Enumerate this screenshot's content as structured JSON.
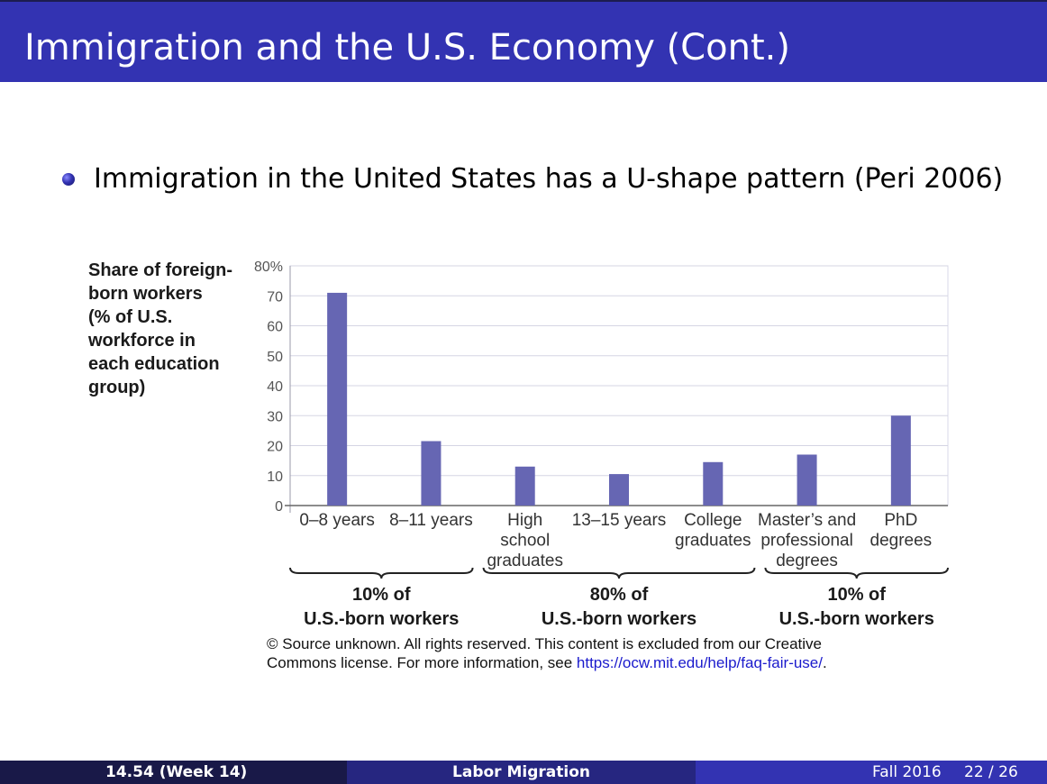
{
  "slide": {
    "title": "Immigration and the U.S. Economy (Cont.)",
    "bullet": "Immigration in the United States has a U-shape pattern (Peri 2006)"
  },
  "chart_data": {
    "type": "bar",
    "title": "",
    "ylabel": [
      "Share of foreign-",
      "born workers",
      "(% of U.S.",
      "workforce in",
      "each education",
      "group)"
    ],
    "xlabel": "",
    "ylim": [
      0,
      80
    ],
    "yticks": [
      "0",
      "10",
      "20",
      "30",
      "40",
      "50",
      "60",
      "70",
      "80%"
    ],
    "categories": [
      [
        "0–8 years"
      ],
      [
        "8–11 years"
      ],
      [
        "High",
        "school",
        "graduates"
      ],
      [
        "13–15 years"
      ],
      [
        "College",
        "graduates"
      ],
      [
        "Master’s and",
        "professional",
        "degrees"
      ],
      [
        "PhD",
        "degrees"
      ]
    ],
    "values": [
      71,
      21.5,
      13,
      10.5,
      14.5,
      17,
      30
    ],
    "bar_color": "#6666b3",
    "grid": true,
    "groups": [
      {
        "label": [
          "10% of",
          "U.S.-born workers"
        ],
        "from": 0,
        "to": 1
      },
      {
        "label": [
          "80% of",
          "U.S.-born workers"
        ],
        "from": 2,
        "to": 4
      },
      {
        "label": [
          "10% of",
          "U.S.-born workers"
        ],
        "from": 5,
        "to": 6
      }
    ]
  },
  "source_note": {
    "line1": "© Source unknown. All rights reserved. This content is excluded from our Creative",
    "line2_prefix": "Commons license. For more information, see ",
    "link": "https://ocw.mit.edu/help/faq-fair-use/",
    "line2_suffix": "."
  },
  "footer": {
    "course": "14.54  (Week 14)",
    "topic": "Labor Migration",
    "date": "Fall 2016",
    "page": "22 / 26"
  },
  "colors": {
    "title_bar": "#3333b2",
    "footer_left": "#191948",
    "footer_mid": "#262680",
    "footer_right": "#3333b2"
  }
}
